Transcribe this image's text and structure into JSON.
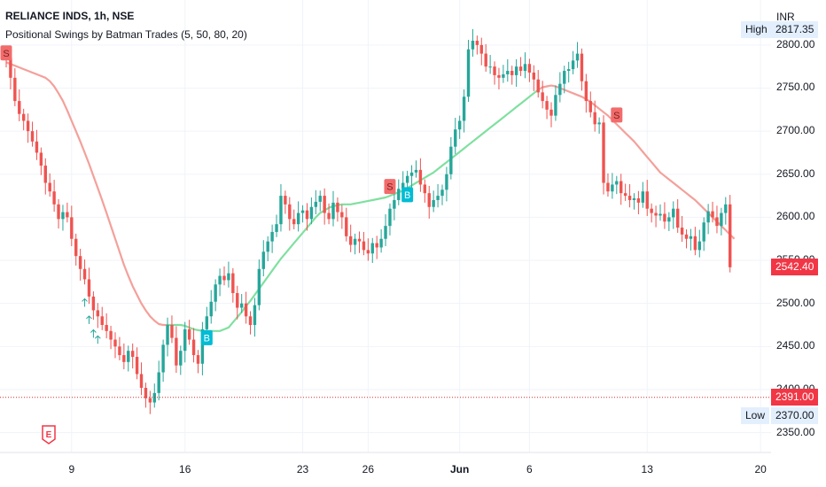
{
  "header": {
    "title": "RELIANCE INDS, 1h, NSE",
    "indicator": "Positional Swings by Batman Trades (5, 50, 80, 20)"
  },
  "currency": "INR",
  "markers": {
    "high": {
      "name": "High",
      "value": "2817.35"
    },
    "low": {
      "name": "Low",
      "value": "2370.00"
    },
    "last": {
      "value": "2542.40"
    },
    "line": {
      "value": "2391.00"
    }
  },
  "earnings_icon": "earnings-flag-icon",
  "colors": {
    "up": "#26a69a",
    "down": "#ef5350",
    "ma_bear": "#f4a09a",
    "ma_bull": "#7fe0a0",
    "buy": "#00bcd4",
    "sell": "#f26b6b",
    "last_tag": "#f23645",
    "hline": "#d32f2f"
  },
  "chart_data": {
    "type": "candlestick",
    "title": "RELIANCE INDS, 1h, NSE",
    "ylim": [
      2328,
      2842
    ],
    "yticks": [
      2350,
      2400,
      2450,
      2500,
      2550,
      2600,
      2650,
      2700,
      2750,
      2800
    ],
    "ytick_labels": [
      "2350.00",
      "2400.00",
      "2450.00",
      "2500.00",
      "2550.00",
      "2600.00",
      "2650.00",
      "2700.00",
      "2750.00",
      "2800.00"
    ],
    "xticks": [
      {
        "label": "9",
        "i": 15
      },
      {
        "label": "16",
        "i": 41
      },
      {
        "label": "23",
        "i": 68
      },
      {
        "label": "26",
        "i": 83
      },
      {
        "label": "Jun",
        "i": 104,
        "bold": true
      },
      {
        "label": "6",
        "i": 120
      },
      {
        "label": "13",
        "i": 147
      },
      {
        "label": "20",
        "i": 173
      }
    ],
    "close": [
      2785,
      2762,
      2735,
      2720,
      2712,
      2700,
      2688,
      2675,
      2660,
      2640,
      2630,
      2615,
      2598,
      2606,
      2600,
      2575,
      2555,
      2540,
      2528,
      2508,
      2492,
      2485,
      2475,
      2468,
      2458,
      2450,
      2440,
      2432,
      2445,
      2438,
      2418,
      2402,
      2390,
      2385,
      2396,
      2420,
      2452,
      2475,
      2460,
      2428,
      2445,
      2470,
      2458,
      2440,
      2430,
      2470,
      2485,
      2502,
      2522,
      2532,
      2527,
      2535,
      2512,
      2495,
      2500,
      2485,
      2475,
      2498,
      2540,
      2560,
      2572,
      2583,
      2592,
      2625,
      2615,
      2598,
      2592,
      2605,
      2608,
      2598,
      2612,
      2618,
      2625,
      2605,
      2598,
      2617,
      2606,
      2600,
      2578,
      2568,
      2575,
      2572,
      2562,
      2558,
      2570,
      2565,
      2575,
      2590,
      2610,
      2620,
      2633,
      2640,
      2648,
      2652,
      2655,
      2638,
      2628,
      2612,
      2620,
      2625,
      2632,
      2650,
      2682,
      2702,
      2712,
      2740,
      2795,
      2805,
      2800,
      2790,
      2775,
      2775,
      2765,
      2762,
      2766,
      2770,
      2765,
      2775,
      2770,
      2778,
      2768,
      2760,
      2745,
      2735,
      2725,
      2718,
      2742,
      2755,
      2770,
      2772,
      2782,
      2790,
      2758,
      2735,
      2722,
      2708,
      2710,
      2640,
      2630,
      2638,
      2642,
      2628,
      2625,
      2620,
      2622,
      2617,
      2630,
      2610,
      2605,
      2602,
      2604,
      2595,
      2600,
      2610,
      2588,
      2580,
      2575,
      2578,
      2562,
      2572,
      2594,
      2607,
      2600,
      2590,
      2605,
      2615,
      2542
    ],
    "ma": [
      2780,
      2778,
      2776,
      2774,
      2772,
      2770,
      2768,
      2766,
      2764,
      2762,
      2758,
      2752,
      2744,
      2735,
      2724,
      2712,
      2700,
      2688,
      2675,
      2662,
      2648,
      2634,
      2620,
      2605,
      2590,
      2575,
      2560,
      2545,
      2532,
      2520,
      2510,
      2500,
      2492,
      2485,
      2480,
      2476,
      2475,
      2475,
      2475,
      2475,
      2475,
      2474,
      2472,
      2470,
      2469,
      2468,
      2468,
      2468,
      2468,
      2468,
      2470,
      2472,
      2478,
      2484,
      2490,
      2497,
      2503,
      2510,
      2517,
      2524,
      2531,
      2538,
      2545,
      2552,
      2558,
      2564,
      2570,
      2576,
      2582,
      2588,
      2594,
      2600,
      2605,
      2608,
      2611,
      2613,
      2614,
      2615,
      2615,
      2615,
      2616,
      2617,
      2618,
      2619,
      2620,
      2621,
      2622,
      2623,
      2625,
      2627,
      2629,
      2631,
      2634,
      2637,
      2640,
      2643,
      2646,
      2649,
      2652,
      2656,
      2660,
      2664,
      2668,
      2672,
      2676,
      2680,
      2684,
      2688,
      2692,
      2696,
      2700,
      2704,
      2708,
      2712,
      2716,
      2720,
      2724,
      2728,
      2732,
      2736,
      2740,
      2744,
      2748,
      2751,
      2752,
      2753,
      2752,
      2750,
      2748,
      2746,
      2744,
      2742,
      2740,
      2737,
      2734,
      2730,
      2726,
      2722,
      2718,
      2713,
      2708,
      2703,
      2698,
      2693,
      2688,
      2682,
      2676,
      2670,
      2664,
      2658,
      2652,
      2648,
      2644,
      2640,
      2636,
      2632,
      2628,
      2624,
      2620,
      2615,
      2610,
      2605,
      2600,
      2595,
      2590,
      2585,
      2580,
      2575
    ],
    "ma_bull_from": 37,
    "ma_bull_to": 122,
    "signals": [
      {
        "type": "S",
        "i": 0
      },
      {
        "type": "B",
        "i": 46
      },
      {
        "type": "S",
        "i": 88
      },
      {
        "type": "B",
        "i": 92
      },
      {
        "type": "S",
        "i": 140
      }
    ],
    "arrows": [
      18,
      19,
      20,
      21
    ],
    "hline": 2391.0,
    "high": 2817.35,
    "low": 2370.0,
    "last": 2542.4
  }
}
